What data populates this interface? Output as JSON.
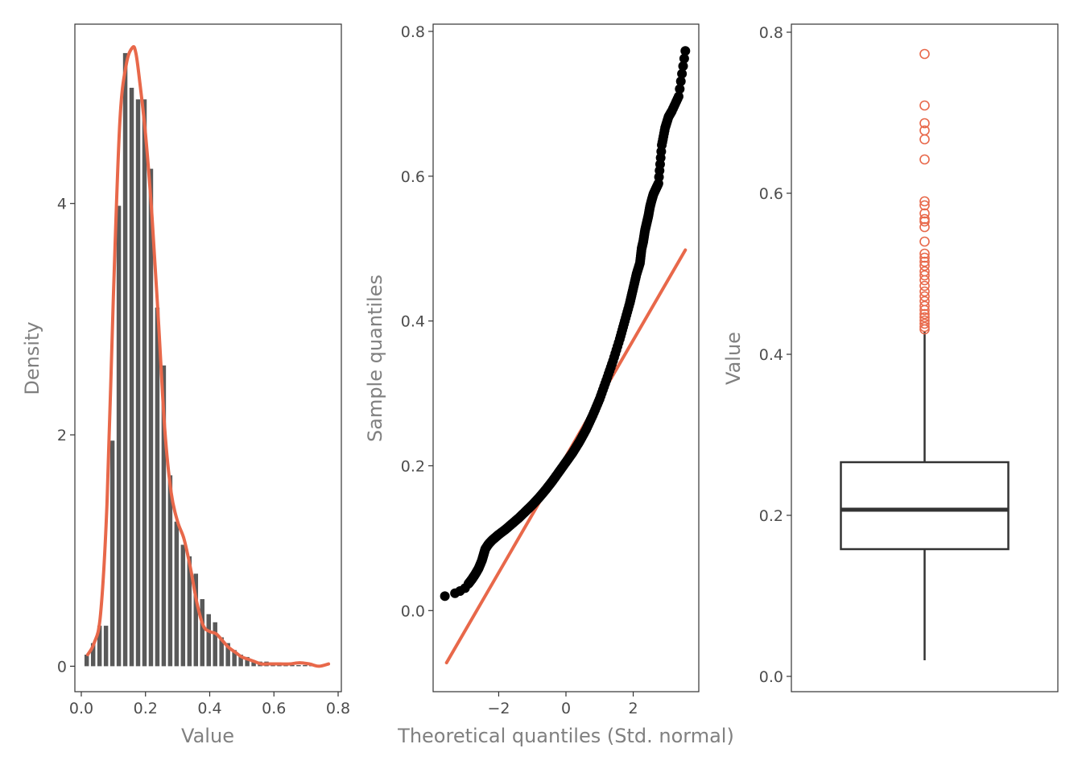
{
  "colors": {
    "accent": "#E8684A",
    "bar": "#595959",
    "point": "#000000",
    "frame": "#333333",
    "tick_text": "#4d4d4d",
    "axis_title": "#808080"
  },
  "chart_data": [
    {
      "type": "bar",
      "subtype": "histogram-with-density",
      "xlabel": "Value",
      "ylabel": "Density",
      "xlim": [
        -0.02,
        0.81
      ],
      "ylim": [
        -0.22,
        5.55
      ],
      "xticks": [
        0.0,
        0.2,
        0.4,
        0.6,
        0.8
      ],
      "xtick_labels": [
        "0.0",
        "0.2",
        "0.4",
        "0.6",
        "0.8"
      ],
      "yticks": [
        0,
        2,
        4
      ],
      "ytick_labels": [
        "0",
        "2",
        "4"
      ],
      "bin_width": 0.02,
      "bins": [
        0.02,
        0.04,
        0.06,
        0.08,
        0.1,
        0.12,
        0.14,
        0.16,
        0.18,
        0.2,
        0.22,
        0.24,
        0.26,
        0.28,
        0.3,
        0.32,
        0.34,
        0.36,
        0.38,
        0.4,
        0.42,
        0.44,
        0.46,
        0.48,
        0.5,
        0.52,
        0.54,
        0.56,
        0.58,
        0.6,
        0.62,
        0.64,
        0.66,
        0.68,
        0.7,
        0.72,
        0.74,
        0.76
      ],
      "values": [
        0.1,
        0.2,
        0.35,
        0.35,
        1.95,
        3.98,
        5.3,
        5.0,
        4.9,
        4.9,
        4.3,
        3.1,
        2.6,
        1.65,
        1.25,
        1.05,
        0.95,
        0.8,
        0.58,
        0.45,
        0.38,
        0.25,
        0.2,
        0.14,
        0.1,
        0.08,
        0.05,
        0.04,
        0.04,
        0.02,
        0.02,
        0.01,
        0.01,
        0.01,
        0.01,
        0.01,
        0.01,
        0.01
      ],
      "density_curve": {
        "x": [
          0.02,
          0.04,
          0.06,
          0.08,
          0.1,
          0.12,
          0.14,
          0.16,
          0.17,
          0.18,
          0.2,
          0.22,
          0.24,
          0.26,
          0.28,
          0.3,
          0.32,
          0.34,
          0.36,
          0.38,
          0.4,
          0.42,
          0.44,
          0.46,
          0.48,
          0.5,
          0.52,
          0.54,
          0.56,
          0.58,
          0.6,
          0.62,
          0.65,
          0.68,
          0.71,
          0.74,
          0.77
        ],
        "y": [
          0.1,
          0.2,
          0.45,
          1.4,
          3.2,
          4.7,
          5.2,
          5.35,
          5.3,
          5.1,
          4.6,
          3.9,
          3.0,
          2.05,
          1.5,
          1.25,
          1.1,
          0.85,
          0.55,
          0.35,
          0.3,
          0.28,
          0.22,
          0.16,
          0.12,
          0.08,
          0.06,
          0.04,
          0.02,
          0.02,
          0.02,
          0.02,
          0.02,
          0.03,
          0.02,
          0.0,
          0.02
        ]
      }
    },
    {
      "type": "scatter",
      "subtype": "qq-plot",
      "xlabel": "Theoretical quantiles (Std. normal)",
      "ylabel": "Sample quantiles",
      "xlim": [
        -3.95,
        3.95
      ],
      "ylim": [
        -0.112,
        0.81
      ],
      "xticks": [
        -2,
        0,
        2
      ],
      "xtick_labels": [
        "−2",
        "0",
        "2"
      ],
      "yticks": [
        0.0,
        0.2,
        0.4,
        0.6,
        0.8
      ],
      "ytick_labels": [
        "0.0",
        "0.2",
        "0.4",
        "0.6",
        "0.8"
      ],
      "points": [
        [
          -3.6,
          0.02
        ],
        [
          -3.3,
          0.024
        ],
        [
          -3.15,
          0.027
        ],
        [
          -3.0,
          0.031
        ],
        [
          -2.9,
          0.037
        ],
        [
          -2.8,
          0.043
        ],
        [
          -2.7,
          0.05
        ],
        [
          -2.6,
          0.058
        ],
        [
          -2.5,
          0.069
        ],
        [
          -2.45,
          0.077
        ],
        [
          -2.4,
          0.085
        ],
        [
          -2.3,
          0.092
        ],
        [
          -2.2,
          0.097
        ],
        [
          -2.1,
          0.101
        ],
        [
          -2.0,
          0.105
        ],
        [
          -1.8,
          0.112
        ],
        [
          -1.6,
          0.12
        ],
        [
          -1.4,
          0.128
        ],
        [
          -1.2,
          0.137
        ],
        [
          -1.0,
          0.146
        ],
        [
          -0.8,
          0.156
        ],
        [
          -0.6,
          0.167
        ],
        [
          -0.4,
          0.179
        ],
        [
          -0.2,
          0.192
        ],
        [
          0.0,
          0.205
        ],
        [
          0.2,
          0.218
        ],
        [
          0.4,
          0.233
        ],
        [
          0.6,
          0.25
        ],
        [
          0.8,
          0.27
        ],
        [
          1.0,
          0.292
        ],
        [
          1.2,
          0.318
        ],
        [
          1.4,
          0.345
        ],
        [
          1.6,
          0.375
        ],
        [
          1.75,
          0.4
        ],
        [
          1.9,
          0.425
        ],
        [
          2.0,
          0.445
        ],
        [
          2.1,
          0.465
        ],
        [
          2.2,
          0.48
        ],
        [
          2.25,
          0.5
        ],
        [
          2.3,
          0.51
        ],
        [
          2.35,
          0.525
        ],
        [
          2.4,
          0.535
        ],
        [
          2.45,
          0.545
        ],
        [
          2.5,
          0.558
        ],
        [
          2.55,
          0.567
        ],
        [
          2.6,
          0.575
        ],
        [
          2.65,
          0.58
        ],
        [
          2.7,
          0.585
        ],
        [
          2.75,
          0.59
        ],
        [
          2.85,
          0.643
        ],
        [
          2.95,
          0.667
        ],
        [
          3.05,
          0.682
        ],
        [
          3.15,
          0.69
        ],
        [
          3.35,
          0.71
        ],
        [
          3.55,
          0.773
        ]
      ],
      "reference_line": {
        "x": [
          -3.55,
          3.55
        ],
        "y": [
          -0.072,
          0.498
        ]
      }
    },
    {
      "type": "box",
      "xlabel": "",
      "ylabel": "Value",
      "ylim": [
        -0.019,
        0.81
      ],
      "yticks": [
        0.0,
        0.2,
        0.4,
        0.6,
        0.8
      ],
      "ytick_labels": [
        "0.0",
        "0.2",
        "0.4",
        "0.6",
        "0.8"
      ],
      "min": 0.02,
      "q1": 0.158,
      "median": 0.207,
      "q3": 0.266,
      "whisker_high": 0.428,
      "outliers": [
        0.773,
        0.709,
        0.687,
        0.678,
        0.667,
        0.642,
        0.59,
        0.585,
        0.575,
        0.568,
        0.565,
        0.558,
        0.54,
        0.525,
        0.52,
        0.515,
        0.51,
        0.503,
        0.498,
        0.492,
        0.485,
        0.478,
        0.472,
        0.466,
        0.46,
        0.455,
        0.45,
        0.446,
        0.442,
        0.438,
        0.434,
        0.431
      ]
    }
  ]
}
